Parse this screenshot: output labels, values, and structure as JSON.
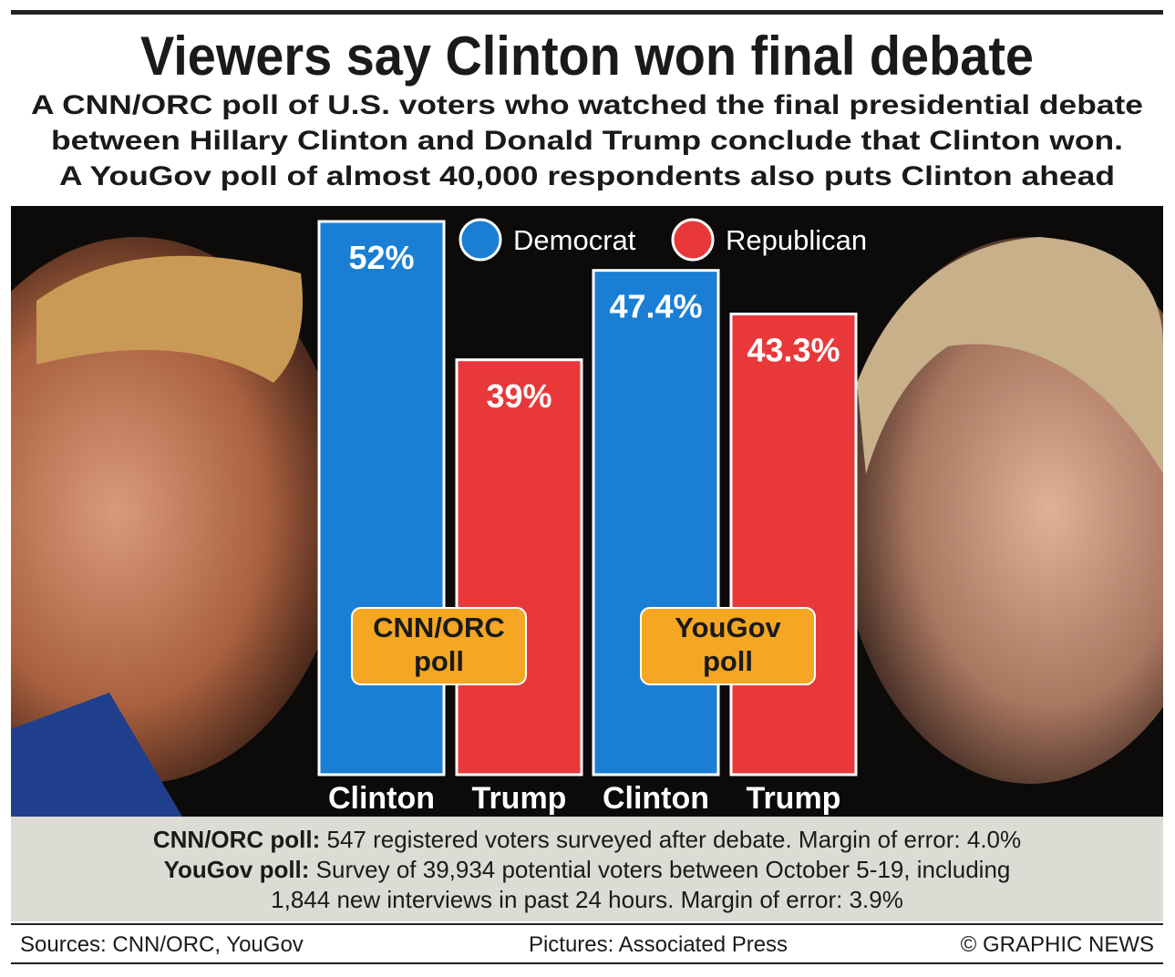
{
  "chart_data": {
    "type": "bar",
    "title": "Viewers say Clinton won final debate",
    "subtitle": [
      "A CNN/ORC poll of U.S. voters who watched the final presidential debate",
      "between Hillary Clinton and Donald Trump conclude that Clinton won.",
      "A YouGov poll of almost 40,000 respondents also puts Clinton ahead"
    ],
    "categories": [
      "Clinton",
      "Trump",
      "Clinton",
      "Trump"
    ],
    "values": [
      52,
      39,
      47.4,
      43.3
    ],
    "value_labels": [
      "52%",
      "39%",
      "47.4%",
      "43.3%"
    ],
    "colors": [
      "#1a7fd4",
      "#e8383a",
      "#1a7fd4",
      "#e8383a"
    ],
    "legend": [
      {
        "name": "Democrat",
        "color": "#1a7fd4"
      },
      {
        "name": "Republican",
        "color": "#e8383a"
      }
    ],
    "groups": [
      [
        "CNN/ORC",
        "poll"
      ],
      [
        "YouGov",
        "poll"
      ]
    ],
    "notes": [
      {
        "bold": "CNN/ORC poll:",
        "text": " 547 registered voters surveyed after debate. Margin of error: 4.0%"
      },
      {
        "bold": "YouGov poll:",
        "text": " Survey of 39,934 potential voters between October 5-19, including"
      },
      {
        "text": "1,844 new interviews in past 24 hours. Margin of error: 3.9%"
      }
    ],
    "sources": "Sources: CNN/ORC, YouGov",
    "pictures": "Pictures: Associated Press",
    "credit": "© GRAPHIC NEWS"
  }
}
